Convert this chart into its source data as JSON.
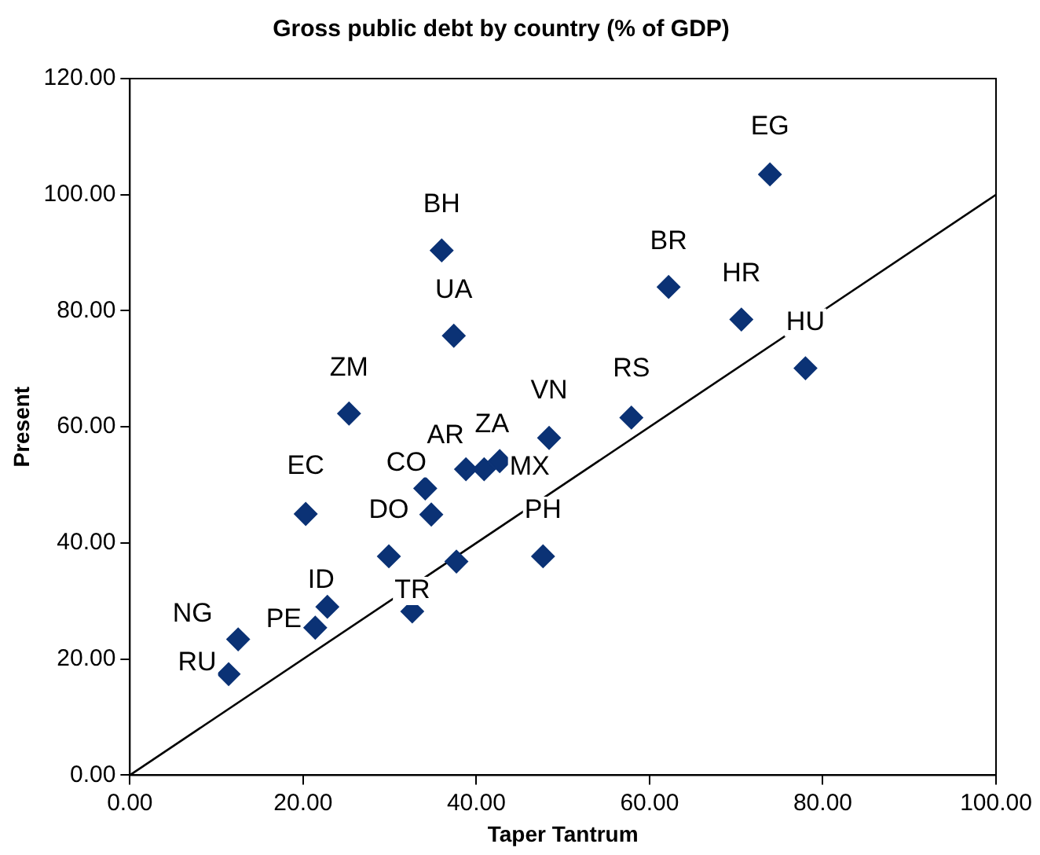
{
  "chart_data": {
    "type": "scatter",
    "title": "Gross public debt by country (% of GDP)",
    "xlabel": "Taper Tantrum",
    "ylabel": "Present",
    "xlim": [
      0,
      100
    ],
    "ylim": [
      0,
      120
    ],
    "xticks": [
      {
        "value": 0,
        "label": "0.00"
      },
      {
        "value": 20,
        "label": "20.00"
      },
      {
        "value": 40,
        "label": "40.00"
      },
      {
        "value": 60,
        "label": "60.00"
      },
      {
        "value": 80,
        "label": "80.00"
      },
      {
        "value": 100,
        "label": "100.00"
      }
    ],
    "yticks": [
      {
        "value": 0,
        "label": "0.00"
      },
      {
        "value": 20,
        "label": "20.00"
      },
      {
        "value": 40,
        "label": "40.00"
      },
      {
        "value": 60,
        "label": "60.00"
      },
      {
        "value": 80,
        "label": "80.00"
      },
      {
        "value": 100,
        "label": "100.00"
      },
      {
        "value": 120,
        "label": "120.00"
      }
    ],
    "grid": false,
    "legend": false,
    "marker": "diamond",
    "series": [
      {
        "color": "#0b3275",
        "x": [
          36.0,
          37.4,
          25.3,
          48.4,
          73.9,
          62.2,
          70.6,
          78.0,
          57.9,
          20.3,
          34.1,
          34.8,
          38.8,
          40.9,
          42.7,
          47.7,
          29.9,
          37.7,
          32.6,
          22.8,
          21.4,
          12.5,
          11.4
        ],
        "values": [
          90.4,
          75.7,
          62.3,
          58.1,
          103.5,
          84.1,
          78.5,
          70.1,
          61.6,
          45.0,
          49.4,
          44.9,
          52.7,
          52.7,
          54.1,
          37.7,
          37.7,
          36.8,
          28.2,
          29.0,
          25.4,
          23.4,
          17.4
        ]
      },
      {
        "type": "line",
        "color": "#000000",
        "marker": "none",
        "line_style": "solid",
        "x": [
          0,
          100
        ],
        "values": [
          0,
          100
        ]
      }
    ],
    "annotations": [
      {
        "text": "BH",
        "x": 36.0,
        "y": 90.4
      },
      {
        "text": "UA",
        "x": 37.4,
        "y": 75.7
      },
      {
        "text": "ZM",
        "x": 25.3,
        "y": 62.3
      },
      {
        "text": "VN",
        "x": 48.4,
        "y": 58.1
      },
      {
        "text": "EG",
        "x": 73.9,
        "y": 103.5
      },
      {
        "text": "BR",
        "x": 62.2,
        "y": 84.1
      },
      {
        "text": "HR",
        "x": 70.6,
        "y": 78.5
      },
      {
        "text": "HU",
        "x": 78.0,
        "y": 70.1
      },
      {
        "text": "RS",
        "x": 57.9,
        "y": 61.6
      },
      {
        "text": "EC",
        "x": 20.3,
        "y": 45.0
      },
      {
        "text": "CO",
        "x": 34.1,
        "y": 49.4
      },
      {
        "text": "AR",
        "x": 38.8,
        "y": 52.7
      },
      {
        "text": "ZA",
        "x": 40.9,
        "y": 52.7
      },
      {
        "text": "MX",
        "x": 42.7,
        "y": 54.1
      },
      {
        "text": "PH",
        "x": 47.7,
        "y": 37.7
      },
      {
        "text": "DO",
        "x": 29.9,
        "y": 37.7
      },
      {
        "text": "TR",
        "x": 32.6,
        "y": 28.2
      },
      {
        "text": "ID",
        "x": 22.8,
        "y": 29.0
      },
      {
        "text": "PE",
        "x": 21.4,
        "y": 25.4
      },
      {
        "text": "NG",
        "x": 12.5,
        "y": 23.4
      },
      {
        "text": "RU",
        "x": 11.4,
        "y": 17.4
      }
    ]
  }
}
